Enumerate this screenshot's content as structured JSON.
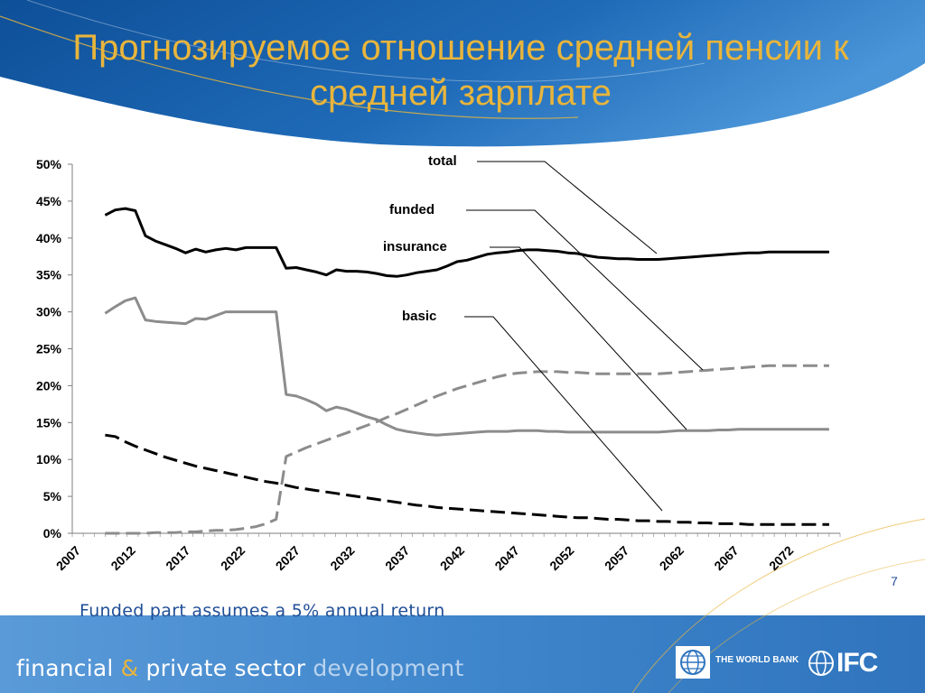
{
  "slide": {
    "title": "Прогнозируемое отношение средней пенсии к средней зарплате",
    "note": "Funded part assumes a 5% annual return",
    "page_number": "7",
    "footer": {
      "part1": "financial",
      "amp": "&",
      "part2": "private sector",
      "part3": "development"
    },
    "logos": {
      "world_bank": "THE WORLD BANK",
      "ifc": "IFC"
    },
    "colors": {
      "header_blue": "#1a5fa8",
      "footer_blue": "#4f8fd0",
      "title_gold": "#e8b53c",
      "note_blue": "#1f4e96"
    }
  },
  "chart_data": {
    "type": "line",
    "x_ticks": [
      "2007",
      "2012",
      "2017",
      "2022",
      "2027",
      "2032",
      "2037",
      "2042",
      "2047",
      "2052",
      "2057",
      "2062",
      "2067",
      "2072"
    ],
    "y_ticks": [
      "0%",
      "5%",
      "10%",
      "15%",
      "20%",
      "25%",
      "30%",
      "35%",
      "40%",
      "45%",
      "50%"
    ],
    "ylim": [
      0,
      0.5
    ],
    "xlim": [
      2007,
      2077
    ],
    "grid": false,
    "legend": "callout labels with leader lines",
    "x_start": 2010,
    "series": [
      {
        "name": "total",
        "style": "solid",
        "color": "#000000",
        "values": [
          0.431,
          0.438,
          0.44,
          0.437,
          0.403,
          0.396,
          0.391,
          0.386,
          0.38,
          0.385,
          0.381,
          0.384,
          0.386,
          0.384,
          0.387,
          0.387,
          0.387,
          0.387,
          0.359,
          0.36,
          0.357,
          0.354,
          0.35,
          0.357,
          0.355,
          0.355,
          0.354,
          0.352,
          0.349,
          0.348,
          0.35,
          0.353,
          0.355,
          0.357,
          0.362,
          0.368,
          0.37,
          0.374,
          0.378,
          0.38,
          0.381,
          0.383,
          0.384,
          0.384,
          0.383,
          0.382,
          0.38,
          0.379,
          0.376,
          0.374,
          0.373,
          0.372,
          0.372,
          0.371,
          0.371,
          0.371,
          0.372,
          0.373,
          0.374,
          0.375,
          0.376,
          0.377,
          0.378,
          0.379,
          0.38,
          0.38,
          0.381,
          0.381,
          0.381,
          0.381,
          0.381,
          0.381,
          0.381
        ]
      },
      {
        "name": "funded",
        "style": "dashed",
        "color": "#8c8c8c",
        "values": [
          0.0,
          0.0,
          0.0,
          0.0,
          0.0,
          0.001,
          0.001,
          0.001,
          0.002,
          0.002,
          0.003,
          0.004,
          0.004,
          0.005,
          0.007,
          0.009,
          0.013,
          0.019,
          0.104,
          0.11,
          0.116,
          0.121,
          0.126,
          0.131,
          0.136,
          0.141,
          0.146,
          0.151,
          0.157,
          0.162,
          0.168,
          0.174,
          0.18,
          0.186,
          0.191,
          0.196,
          0.2,
          0.204,
          0.208,
          0.212,
          0.215,
          0.217,
          0.218,
          0.219,
          0.219,
          0.219,
          0.218,
          0.218,
          0.217,
          0.216,
          0.216,
          0.216,
          0.216,
          0.216,
          0.216,
          0.216,
          0.217,
          0.218,
          0.219,
          0.22,
          0.221,
          0.222,
          0.223,
          0.224,
          0.225,
          0.226,
          0.227,
          0.227,
          0.227,
          0.227,
          0.227,
          0.227,
          0.227
        ]
      },
      {
        "name": "insurance",
        "style": "solid",
        "color": "#8c8c8c",
        "values": [
          0.298,
          0.307,
          0.315,
          0.319,
          0.289,
          0.287,
          0.286,
          0.285,
          0.284,
          0.291,
          0.29,
          0.295,
          0.3,
          0.3,
          0.3,
          0.3,
          0.3,
          0.3,
          0.188,
          0.186,
          0.181,
          0.175,
          0.166,
          0.171,
          0.168,
          0.163,
          0.158,
          0.154,
          0.147,
          0.141,
          0.138,
          0.136,
          0.134,
          0.133,
          0.134,
          0.135,
          0.136,
          0.137,
          0.138,
          0.138,
          0.138,
          0.139,
          0.139,
          0.139,
          0.138,
          0.138,
          0.137,
          0.137,
          0.137,
          0.137,
          0.137,
          0.137,
          0.137,
          0.137,
          0.137,
          0.137,
          0.138,
          0.139,
          0.139,
          0.139,
          0.139,
          0.14,
          0.14,
          0.141,
          0.141,
          0.141,
          0.141,
          0.141,
          0.141,
          0.141,
          0.141,
          0.141,
          0.141
        ]
      },
      {
        "name": "basic",
        "style": "dashed",
        "color": "#000000",
        "values": [
          0.133,
          0.131,
          0.124,
          0.118,
          0.113,
          0.108,
          0.103,
          0.099,
          0.095,
          0.091,
          0.088,
          0.085,
          0.082,
          0.079,
          0.076,
          0.073,
          0.07,
          0.068,
          0.065,
          0.062,
          0.06,
          0.058,
          0.056,
          0.054,
          0.052,
          0.05,
          0.048,
          0.046,
          0.044,
          0.042,
          0.04,
          0.038,
          0.037,
          0.035,
          0.034,
          0.033,
          0.032,
          0.031,
          0.03,
          0.029,
          0.028,
          0.027,
          0.026,
          0.025,
          0.024,
          0.023,
          0.022,
          0.021,
          0.021,
          0.02,
          0.019,
          0.019,
          0.018,
          0.017,
          0.017,
          0.016,
          0.016,
          0.015,
          0.015,
          0.014,
          0.014,
          0.013,
          0.013,
          0.013,
          0.012,
          0.012,
          0.012,
          0.012,
          0.012,
          0.012,
          0.012,
          0.012,
          0.012
        ]
      }
    ],
    "series_end_year": 2076
  }
}
